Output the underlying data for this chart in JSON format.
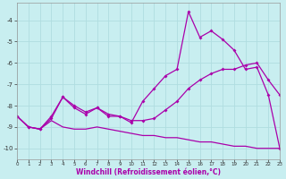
{
  "xlabel": "Windchill (Refroidissement éolien,°C)",
  "bg_color": "#c8eef0",
  "grid_color": "#b0dde0",
  "line_color": "#aa00aa",
  "x": [
    0,
    1,
    2,
    3,
    4,
    5,
    6,
    7,
    8,
    9,
    10,
    11,
    12,
    13,
    14,
    15,
    16,
    17,
    18,
    19,
    20,
    21,
    22,
    23
  ],
  "line1": [
    -8.5,
    -9.0,
    -9.1,
    -8.6,
    -7.6,
    -8.1,
    -8.4,
    -8.1,
    -8.5,
    -8.5,
    -8.8,
    -7.8,
    -7.2,
    -6.6,
    -6.3,
    -3.6,
    -4.8,
    -4.5,
    -4.9,
    -5.4,
    -6.3,
    -6.2,
    -7.5,
    -10.0
  ],
  "line2": [
    -8.5,
    -9.0,
    -9.1,
    -8.5,
    -7.6,
    -8.0,
    -8.3,
    -8.1,
    -8.4,
    -8.5,
    -8.7,
    -8.7,
    -8.6,
    -8.2,
    -7.8,
    -7.2,
    -6.8,
    -6.5,
    -6.3,
    -6.3,
    -6.1,
    -6.0,
    -6.8,
    -7.5
  ],
  "line3": [
    -8.5,
    -9.0,
    -9.1,
    -8.7,
    -9.0,
    -9.1,
    -9.1,
    -9.0,
    -9.1,
    -9.2,
    -9.3,
    -9.4,
    -9.4,
    -9.5,
    -9.5,
    -9.6,
    -9.7,
    -9.7,
    -9.8,
    -9.9,
    -9.9,
    -10.0,
    -10.0,
    -10.0
  ],
  "xlim": [
    0,
    23
  ],
  "ylim": [
    -10.5,
    -3.2
  ],
  "yticks": [
    -10,
    -9,
    -8,
    -7,
    -6,
    -5,
    -4
  ],
  "xticks": [
    0,
    1,
    2,
    3,
    4,
    5,
    6,
    7,
    8,
    9,
    10,
    11,
    12,
    13,
    14,
    15,
    16,
    17,
    18,
    19,
    20,
    21,
    22,
    23
  ]
}
